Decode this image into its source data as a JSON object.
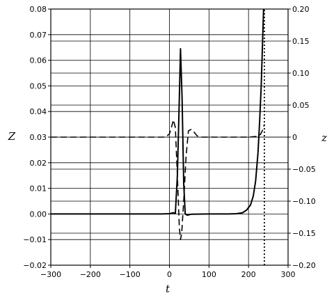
{
  "chart_data": {
    "type": "line",
    "xlabel": "t",
    "ylabel_left": "Z",
    "ylabel_right": "z",
    "xlim": [
      -300,
      300
    ],
    "ylim_left": [
      -0.02,
      0.08
    ],
    "ylim_right": [
      -0.2,
      0.2
    ],
    "grid": true,
    "x_ticks": [
      -300,
      -200,
      -100,
      0,
      100,
      200,
      300
    ],
    "x_tick_labels": [
      "−300",
      "−200",
      "−100",
      "0",
      "100",
      "200",
      "300"
    ],
    "left_ticks": [
      -0.02,
      -0.01,
      0.0,
      0.01,
      0.02,
      0.03,
      0.04,
      0.05,
      0.06,
      0.07,
      0.08
    ],
    "left_tick_labels": [
      "−0.02",
      "−0.01",
      "0.00",
      "0.01",
      "0.02",
      "0.03",
      "0.04",
      "0.05",
      "0.06",
      "0.07",
      "0.08"
    ],
    "right_ticks": [
      -0.2,
      -0.15,
      -0.1,
      -0.05,
      0,
      0.05,
      0.1,
      0.15,
      0.2
    ],
    "right_tick_labels": [
      "−0.20",
      "−0.15",
      "−0.10",
      "−0.05",
      "0",
      "0.05",
      "0.10",
      "0.15",
      "0.20"
    ],
    "series": [
      {
        "style": "solid",
        "axis": "left",
        "x": [
          -300,
          -20,
          0,
          10,
          15,
          20,
          25,
          28,
          32,
          36,
          40,
          45,
          55,
          100,
          150,
          170,
          185,
          195,
          205,
          212,
          218,
          224,
          228,
          232,
          235,
          238
        ],
        "y": [
          0.0,
          0.0,
          0.0001,
          0.0005,
          0.0002,
          0.015,
          0.045,
          0.0645,
          0.045,
          0.012,
          0.0,
          -0.0005,
          -0.0001,
          0.0,
          0.0,
          0.0001,
          0.0005,
          0.0015,
          0.0035,
          0.007,
          0.013,
          0.024,
          0.036,
          0.05,
          0.065,
          0.08
        ]
      },
      {
        "style": "dashed",
        "axis": "right",
        "x": [
          -300,
          -20,
          -10,
          0,
          5,
          10,
          15,
          20,
          25,
          28,
          31,
          36,
          42,
          48,
          55,
          62,
          70,
          80,
          100,
          150,
          200,
          220,
          230,
          235,
          240
        ],
        "y": [
          0,
          0,
          0.0,
          0.005,
          0.015,
          0.027,
          0.015,
          -0.06,
          -0.14,
          -0.16,
          -0.15,
          -0.1,
          -0.03,
          0.01,
          0.012,
          0.008,
          0.002,
          0.0,
          0,
          0,
          0,
          0.001,
          0.004,
          0.01,
          0.02
        ]
      },
      {
        "style": "dotted",
        "axis": "left",
        "x": [
          240,
          240
        ],
        "y": [
          -0.02,
          0.08
        ]
      }
    ]
  }
}
